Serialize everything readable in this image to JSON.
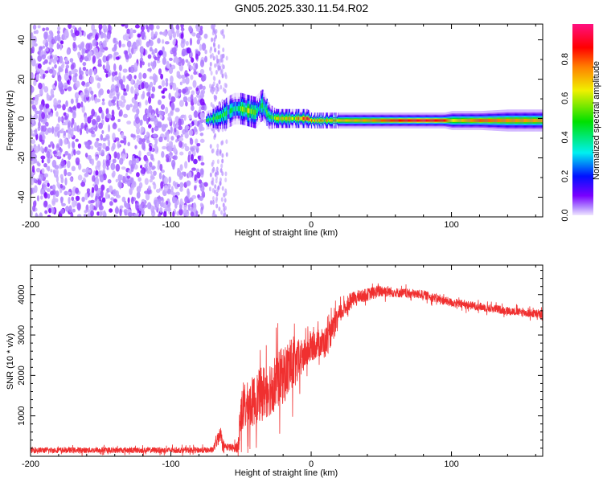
{
  "title": "GN05.2025.330.11.54.R02",
  "chart_data": [
    {
      "type": "heatmap",
      "name": "spectrogram",
      "xlabel": "Height of straight line (km)",
      "ylabel": "Frequency (Hz)",
      "xlim": [
        -200,
        165
      ],
      "ylim": [
        -50,
        48
      ],
      "xticks": [
        -200,
        -100,
        0,
        100
      ],
      "xtick_labels": [
        "-200",
        "-100",
        "0",
        "100"
      ],
      "yticks": [
        -40,
        -20,
        0,
        20,
        40
      ],
      "ytick_labels": [
        "-40",
        "-20",
        "0",
        "20",
        "40"
      ],
      "noise_region_km": [
        -200,
        -75
      ],
      "faint_noise_region_km": [
        -72,
        -60
      ],
      "noise_amplitude": [
        0.02,
        0.12
      ],
      "ridge": {
        "x": [
          -75,
          -70,
          -65,
          -60,
          -55,
          -50,
          -45,
          -40,
          -35,
          -30,
          -25,
          -20,
          -10,
          -3,
          0,
          10,
          20,
          40,
          60,
          80,
          95,
          100,
          120,
          140,
          165
        ],
        "freq": [
          -1,
          0,
          1,
          3,
          5,
          5,
          4,
          3,
          7,
          1,
          0,
          0,
          0,
          0,
          -1,
          -1,
          -1,
          -1,
          -1,
          -1,
          -1,
          -1,
          -1,
          -1,
          -1
        ],
        "amplitude": [
          0.6,
          0.4,
          0.45,
          0.4,
          0.45,
          0.5,
          0.55,
          0.45,
          0.4,
          0.45,
          0.6,
          0.6,
          0.65,
          0.85,
          0.7,
          0.65,
          0.7,
          0.75,
          0.85,
          0.9,
          0.85,
          0.65,
          0.8,
          0.75,
          0.72
        ],
        "halfwidth_hz": [
          3,
          3,
          4,
          5,
          5,
          5,
          5,
          5,
          5,
          4,
          3,
          3,
          3,
          3,
          2.5,
          2.5,
          2.5,
          2.5,
          2.5,
          2.5,
          2.5,
          3,
          3,
          3.5,
          3.5
        ]
      },
      "colorbar": {
        "label": "Normalized spectral amplitude",
        "range": [
          0,
          0.98
        ],
        "ticks": [
          0,
          0.2,
          0.4,
          0.6,
          0.8
        ],
        "tick_labels": [
          "0.0",
          "0.2",
          "0.4",
          "0.6",
          "0.8"
        ],
        "colormap": [
          {
            "v": 0.0,
            "c": "#f0e6ff"
          },
          {
            "v": 0.04,
            "c": "#b48cff"
          },
          {
            "v": 0.1,
            "c": "#7a00ff"
          },
          {
            "v": 0.2,
            "c": "#0010ff"
          },
          {
            "v": 0.32,
            "c": "#00f0f0"
          },
          {
            "v": 0.48,
            "c": "#00e000"
          },
          {
            "v": 0.64,
            "c": "#f0f000"
          },
          {
            "v": 0.76,
            "c": "#ff8000"
          },
          {
            "v": 0.86,
            "c": "#ff0000"
          },
          {
            "v": 0.98,
            "c": "#ff1080"
          }
        ]
      }
    },
    {
      "type": "line",
      "name": "snr",
      "xlabel": "Height of straight line (km)",
      "ylabel": "SNR (10 * v/v)",
      "xlim": [
        -200,
        165
      ],
      "ylim": [
        0,
        4730
      ],
      "xticks": [
        -200,
        -100,
        0,
        100
      ],
      "xtick_labels": [
        "-200",
        "-100",
        "0",
        "100"
      ],
      "yticks": [
        1000,
        2000,
        3000,
        4000
      ],
      "ytick_labels": [
        "1000",
        "2000",
        "3000",
        "4000"
      ],
      "color": "#f03030",
      "series": [
        {
          "name": "SNR",
          "x": [
            -200,
            -70,
            -67,
            -65,
            -62,
            -55,
            -52,
            -50,
            -40,
            -30,
            -20,
            -15,
            -10,
            -5,
            0,
            5,
            10,
            15,
            20,
            25,
            30,
            40,
            50,
            60,
            80,
            100,
            120,
            140,
            165
          ],
          "mean": [
            150,
            150,
            400,
            600,
            250,
            200,
            250,
            1100,
            1400,
            1700,
            2000,
            2200,
            2300,
            2500,
            2700,
            2800,
            2800,
            3100,
            3500,
            3700,
            3900,
            4000,
            4100,
            4050,
            4000,
            3800,
            3700,
            3600,
            3500
          ],
          "noise": [
            90,
            90,
            200,
            250,
            120,
            120,
            200,
            700,
            800,
            900,
            900,
            900,
            700,
            500,
            450,
            450,
            500,
            400,
            300,
            250,
            220,
            200,
            200,
            150,
            140,
            140,
            130,
            130,
            130
          ]
        }
      ]
    }
  ]
}
